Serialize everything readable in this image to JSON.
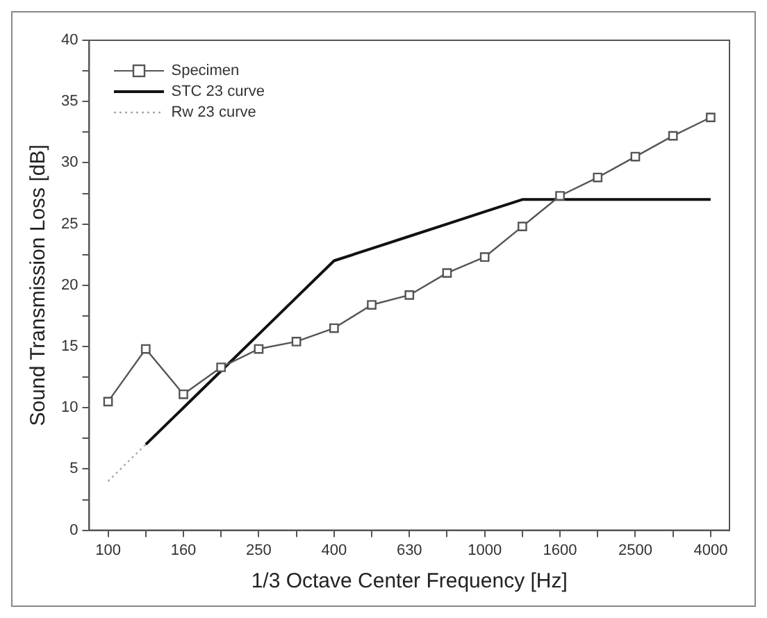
{
  "chart_data": {
    "type": "line",
    "xlabel": "1/3 Octave Center Frequency [Hz]",
    "ylabel": "Sound Transmission Loss [dB]",
    "categories": [
      "100",
      null,
      "160",
      null,
      "250",
      null,
      "400",
      null,
      "630",
      null,
      "1000",
      null,
      "1600",
      null,
      "2500",
      null,
      "4000"
    ],
    "series": [
      {
        "name": "Specimen",
        "color": "#555555",
        "marker": "square",
        "line_style": "solid",
        "values": [
          10.5,
          14.8,
          11.1,
          13.3,
          14.8,
          15.4,
          16.5,
          18.4,
          19.2,
          21.0,
          22.3,
          24.8,
          27.3,
          28.8,
          30.5,
          32.2,
          33.7
        ]
      },
      {
        "name": "STC 23 curve",
        "color": "#111111",
        "marker": "none",
        "line_style": "solid",
        "values": [
          null,
          7,
          10,
          13,
          16,
          19,
          22,
          23,
          24,
          25,
          26,
          27,
          27,
          27,
          27,
          27,
          27
        ]
      },
      {
        "name": "Rw 23 curve",
        "color": "#aaaaaa",
        "marker": "none",
        "line_style": "dotted",
        "values": [
          4,
          7,
          null,
          null,
          null,
          null,
          null,
          null,
          null,
          null,
          null,
          null,
          null,
          null,
          null,
          null,
          null
        ]
      }
    ],
    "ylim": [
      0,
      40
    ],
    "yticks": [
      0,
      {
        "value": 2.5,
        "label": null
      },
      5,
      {
        "value": 7.5,
        "label": null
      },
      10,
      {
        "value": 12.5,
        "label": null
      },
      15,
      {
        "value": 17.5,
        "label": null
      },
      20,
      {
        "value": 22.5,
        "label": null
      },
      25,
      {
        "value": 27.5,
        "label": null
      },
      30,
      {
        "value": 32.5,
        "label": null
      },
      35,
      {
        "value": 37.5,
        "label": null
      },
      40
    ],
    "grid": false,
    "legend": "top left"
  }
}
